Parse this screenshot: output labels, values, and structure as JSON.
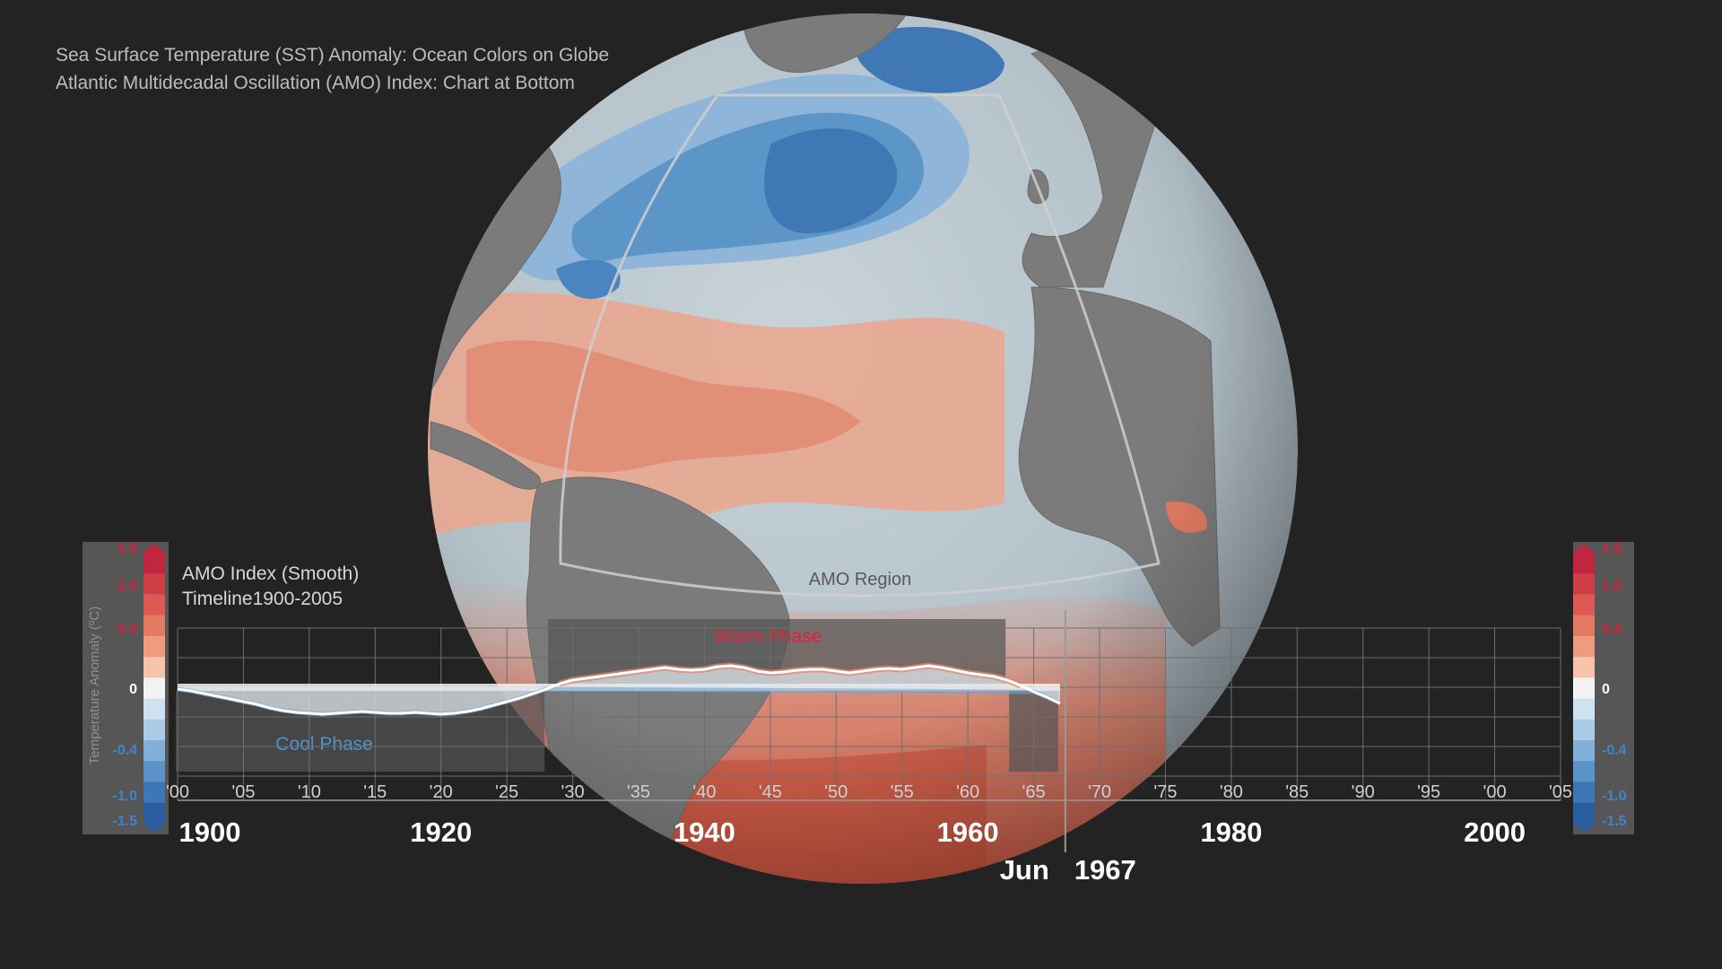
{
  "captions": {
    "line1": "Sea Surface Temperature (SST) Anomaly: Ocean Colors on Globe",
    "line2": "Atlantic Multidecadal Oscillation (AMO) Index: Chart at Bottom"
  },
  "globe": {
    "region_label": "AMO Region"
  },
  "colors": {
    "background": "#232323",
    "warm": "#e0876e",
    "warm_text": "#e0233a",
    "cool": "#6aa6d6",
    "cool_text": "#4e93cc",
    "zero_band": "#f3f3f3"
  },
  "colorbar": {
    "title": "Temperature Anomaly (ºC)",
    "min": -1.5,
    "max": 1.5,
    "ticks": [
      "1.5",
      "1.0",
      "0.4",
      "0",
      "-0.4",
      "-1.0",
      "-1.5"
    ],
    "tick_values": [
      1.5,
      1.0,
      0.4,
      0,
      -0.4,
      -1.0,
      -1.5
    ],
    "swatches": [
      "#c0263d",
      "#cf3d45",
      "#dc5a51",
      "#e57a62",
      "#ee9b80",
      "#f6c3ad",
      "#f3f3f3",
      "#cfe2ef",
      "#a9cbe6",
      "#80b0d9",
      "#5b93c8",
      "#3e77b5",
      "#2a5e9e"
    ]
  },
  "chart_data": {
    "type": "area",
    "title": "AMO Index (Smooth)",
    "subtitle": "Timeline1900-2005",
    "xlim": [
      1900,
      2005
    ],
    "ylim": [
      -1.5,
      1.5
    ],
    "x_ticks": [
      "'00",
      "'05",
      "'10",
      "'15",
      "'20",
      "'25",
      "'30",
      "'35",
      "'40",
      "'45",
      "'50",
      "'55",
      "'60",
      "'65",
      "'70",
      "'75",
      "'80",
      "'85",
      "'90",
      "'95",
      "'00",
      "'05"
    ],
    "x_tick_values": [
      1900,
      1905,
      1910,
      1915,
      1920,
      1925,
      1930,
      1935,
      1940,
      1945,
      1950,
      1955,
      1960,
      1965,
      1970,
      1975,
      1980,
      1985,
      1990,
      1995,
      2000,
      2005
    ],
    "decade_labels": [
      "1900",
      "1920",
      "1940",
      "1960",
      "1980",
      "2000"
    ],
    "decade_values": [
      1900,
      1920,
      1940,
      1960,
      1980,
      2000
    ],
    "current": {
      "month": "Jun",
      "year": "1967",
      "value": 1967.4
    },
    "phases": [
      {
        "name": "Cool Phase",
        "start": 1900,
        "end": 1928
      },
      {
        "name": "Warm Phase",
        "start": 1928,
        "end": 1963
      },
      {
        "name": "",
        "start": 1963,
        "end": 1967
      }
    ],
    "series": [
      {
        "x": [
          1900,
          1901,
          1902,
          1903,
          1904,
          1905,
          1906,
          1907,
          1908,
          1909,
          1910,
          1911,
          1912,
          1913,
          1914,
          1915,
          1916,
          1917,
          1918,
          1919,
          1920,
          1921,
          1922,
          1923,
          1924,
          1925,
          1926,
          1927,
          1928,
          1929,
          1930,
          1931,
          1932,
          1933,
          1934,
          1935,
          1936,
          1937,
          1938,
          1939,
          1940,
          1941,
          1942,
          1943,
          1944,
          1945,
          1946,
          1947,
          1948,
          1949,
          1950,
          1951,
          1952,
          1953,
          1954,
          1955,
          1956,
          1957,
          1958,
          1959,
          1960,
          1961,
          1962,
          1963,
          1964,
          1965,
          1966,
          1967
        ],
        "values": [
          -0.02,
          -0.04,
          -0.07,
          -0.1,
          -0.13,
          -0.16,
          -0.19,
          -0.23,
          -0.26,
          -0.28,
          -0.29,
          -0.3,
          -0.29,
          -0.28,
          -0.27,
          -0.28,
          -0.29,
          -0.29,
          -0.28,
          -0.29,
          -0.3,
          -0.29,
          -0.27,
          -0.24,
          -0.2,
          -0.16,
          -0.12,
          -0.07,
          -0.02,
          0.04,
          0.08,
          0.1,
          0.12,
          0.14,
          0.16,
          0.18,
          0.2,
          0.22,
          0.2,
          0.19,
          0.2,
          0.23,
          0.24,
          0.22,
          0.18,
          0.16,
          0.17,
          0.19,
          0.2,
          0.2,
          0.18,
          0.16,
          0.18,
          0.2,
          0.21,
          0.2,
          0.22,
          0.24,
          0.22,
          0.19,
          0.16,
          0.14,
          0.12,
          0.08,
          0.02,
          -0.05,
          -0.11,
          -0.18
        ]
      }
    ]
  }
}
